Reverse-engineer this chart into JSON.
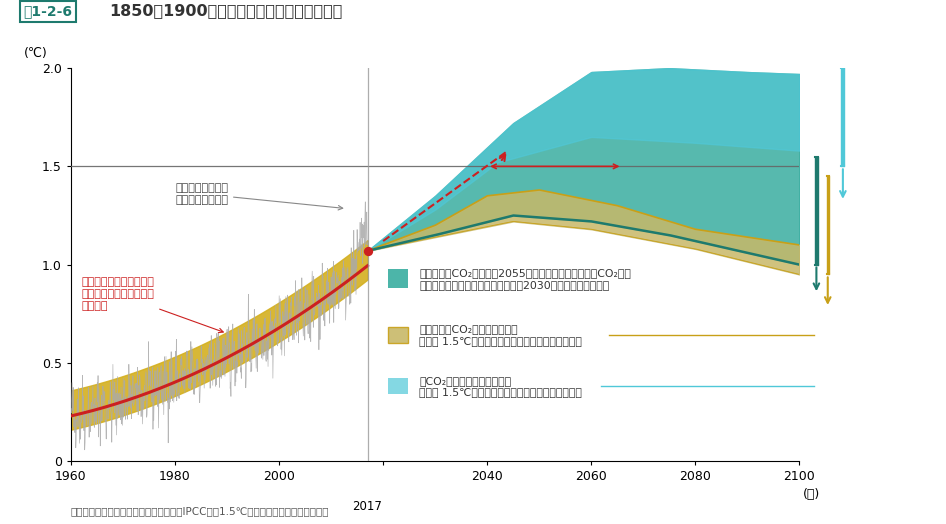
{
  "title_box": "図1-2-6",
  "title_main": "1850～1900年を基準とした気温上昇の変化",
  "ylabel": "(℃)",
  "xlabel_right": "(年)",
  "source": "資料：気候変動に関する政府間パネル（IPCC）「1.5℃特別報告書」より環境省作成",
  "xlim": [
    1960,
    2100
  ],
  "ylim": [
    0,
    2.0
  ],
  "year_2017": 2017,
  "val_2017": 1.07,
  "colors": {
    "teal_fill": "#2da89a",
    "teal_dark": "#1e7a6e",
    "teal_line": "#1a6b60",
    "yellow_fill": "#c8a018",
    "yellow_band": "#d4b020",
    "yellow_light": "#ddc060",
    "olive_fill": "#c8b868",
    "cyan_fill": "#50c8d8",
    "cyan_light": "#90dce8",
    "gray_obs": "#aaaaaa",
    "red_line": "#cc2020",
    "red_dot": "#cc2020",
    "hline_color": "#666666"
  },
  "legend_text1_l1": "世界全体のCO₂排出量は2055年に正味ゼロに達し、非CO₂（メ",
  "legend_text1_l2": "タンやブラックカーボン等）排出は2030年以降減少する場合",
  "legend_text2_l1": "より急速なCO₂削減によって、",
  "legend_text2_l2": "昇温を 1.5℃に抑えられる確率がより高くなる場合",
  "legend_text3_l1": "非CO₂排出が減少しない場合",
  "legend_text3_l2": "昇温を 1.5℃に抑えられる確率がより低くなる場合",
  "ann_obs_l1": "観測された月毎の",
  "ann_obs_l2": "世界平均地上気温",
  "ann_human_l1": "今日までに推定される人",
  "ann_human_l2": "為起源の昇温と可能性の",
  "ann_human_l3": "高い範囲"
}
